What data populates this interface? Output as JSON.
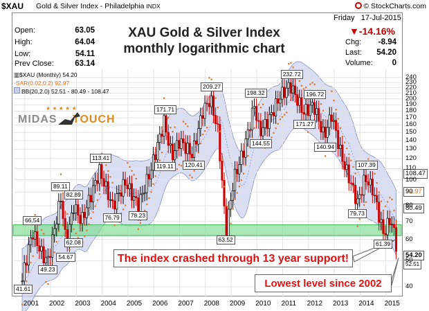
{
  "header": {
    "symbol": "$XAU",
    "index_name": "Gold & Silver Index - Philadelphia",
    "exchange": "INDX",
    "brand": "© StockCharts.com"
  },
  "info": {
    "open_label": "Open:",
    "open": "63.05",
    "high_label": "High:",
    "high": "64.04",
    "low_label": "Low:",
    "low": "54.11",
    "prev_label": "Prev Close:",
    "prev": "63.14",
    "date": "Friday   17-Jul-2015",
    "pct_change": "-14.16%",
    "chg_label": "Chg:",
    "chg": "-8.94",
    "last_label": "Last:",
    "last": "54.20",
    "volume_label": "Volume:",
    "volume": "0"
  },
  "title_line1": "XAU Gold & Silver Index",
  "title_line2": "monthly logarithmic chart",
  "legend": {
    "line1": "$XAU (Monthly) 54.20",
    "line2": "SAR(0.02,0.2) 92.97",
    "line3": "BB(20,2.0) 52.51 - 80.49 - 108.47"
  },
  "watermark": {
    "part1": "MIDAS",
    "part2": "TOUCH"
  },
  "callouts": {
    "crash": "The index crashed through 13 year support!",
    "lowest": "Lowest level since 2002"
  },
  "right_tags": {
    "bb_upper": "108.47",
    "sar": "92.97",
    "bb_mid": "80.49",
    "last": "54.20",
    "bb_lower": "52.51"
  },
  "colors": {
    "up": "#000000",
    "down": "#cc0000",
    "sar": "#e07020",
    "band_fill": "#c9d0ec",
    "band_line": "#8890c0",
    "support_zone": "#7bdc8e"
  },
  "chart_data": {
    "type": "line",
    "title": "XAU Gold & Silver Index monthly logarithmic chart",
    "scale": "log",
    "ylim": [
      40,
      240
    ],
    "y_ticks": [
      40,
      50,
      60,
      70,
      80,
      90,
      100,
      110,
      120,
      130,
      140,
      150,
      160,
      170,
      180,
      190,
      200,
      210,
      220,
      230,
      240
    ],
    "x_ticks": [
      "2001",
      "2002",
      "2003",
      "2004",
      "2005",
      "2006",
      "2007",
      "2008",
      "2009",
      "2010",
      "2011",
      "2012",
      "2013",
      "2014",
      "2015"
    ],
    "support_band": [
      62,
      68
    ],
    "labeled_points": [
      {
        "x": 2000.9,
        "y": 41.61,
        "label": "41.61"
      },
      {
        "x": 2001.3,
        "y": 66.54,
        "label": "66.54"
      },
      {
        "x": 2001.9,
        "y": 49.23,
        "label": "49.23"
      },
      {
        "x": 2002.4,
        "y": 89.11,
        "label": "89.11"
      },
      {
        "x": 2002.6,
        "y": 54.67,
        "label": "54.67"
      },
      {
        "x": 2002.9,
        "y": 82.89,
        "label": "82.89"
      },
      {
        "x": 2002.9,
        "y": 62.08,
        "label": "62.08"
      },
      {
        "x": 2003.9,
        "y": 113.41,
        "label": "113.41"
      },
      {
        "x": 2004.4,
        "y": 76.79,
        "label": "76.79"
      },
      {
        "x": 2005.4,
        "y": 78.23,
        "label": "78.23"
      },
      {
        "x": 2006.4,
        "y": 171.71,
        "label": "171.71"
      },
      {
        "x": 2006.4,
        "y": 119.11,
        "label": "119.11"
      },
      {
        "x": 2007.5,
        "y": 120.41,
        "label": "120.41"
      },
      {
        "x": 2008.2,
        "y": 209.27,
        "label": "209.27"
      },
      {
        "x": 2008.8,
        "y": 63.52,
        "label": "63.52"
      },
      {
        "x": 2009.9,
        "y": 198.32,
        "label": "198.32"
      },
      {
        "x": 2010.1,
        "y": 144.55,
        "label": "144.55"
      },
      {
        "x": 2011.3,
        "y": 232.72,
        "label": "232.72"
      },
      {
        "x": 2011.8,
        "y": 171.27,
        "label": "171.27"
      },
      {
        "x": 2012.2,
        "y": 196.72,
        "label": "196.72"
      },
      {
        "x": 2012.6,
        "y": 140.94,
        "label": "140.94"
      },
      {
        "x": 2014.2,
        "y": 107.39,
        "label": "107.39"
      },
      {
        "x": 2013.9,
        "y": 79.73,
        "label": "79.73"
      },
      {
        "x": 2014.9,
        "y": 61.39,
        "label": "61.39"
      }
    ],
    "x": [
      2000.9,
      2001.0,
      2001.3,
      2001.7,
      2001.9,
      2002.4,
      2002.6,
      2002.9,
      2003.2,
      2003.9,
      2004.4,
      2004.9,
      2005.4,
      2005.9,
      2006.4,
      2006.7,
      2007.0,
      2007.5,
      2007.9,
      2008.2,
      2008.5,
      2008.8,
      2009.1,
      2009.5,
      2009.9,
      2010.1,
      2010.5,
      2010.9,
      2011.3,
      2011.8,
      2012.2,
      2012.6,
      2012.9,
      2013.3,
      2013.6,
      2013.9,
      2014.2,
      2014.5,
      2014.9,
      2015.2,
      2015.45
    ],
    "series": [
      {
        "name": "$XAU (Monthly)",
        "values": [
          42,
          48,
          64,
          52,
          50,
          86,
          58,
          80,
          70,
          108,
          80,
          98,
          80,
          110,
          165,
          122,
          140,
          124,
          180,
          200,
          150,
          64,
          100,
          130,
          190,
          150,
          170,
          205,
          225,
          178,
          190,
          145,
          175,
          120,
          100,
          82,
          102,
          92,
          63,
          72,
          54.2
        ]
      }
    ]
  }
}
